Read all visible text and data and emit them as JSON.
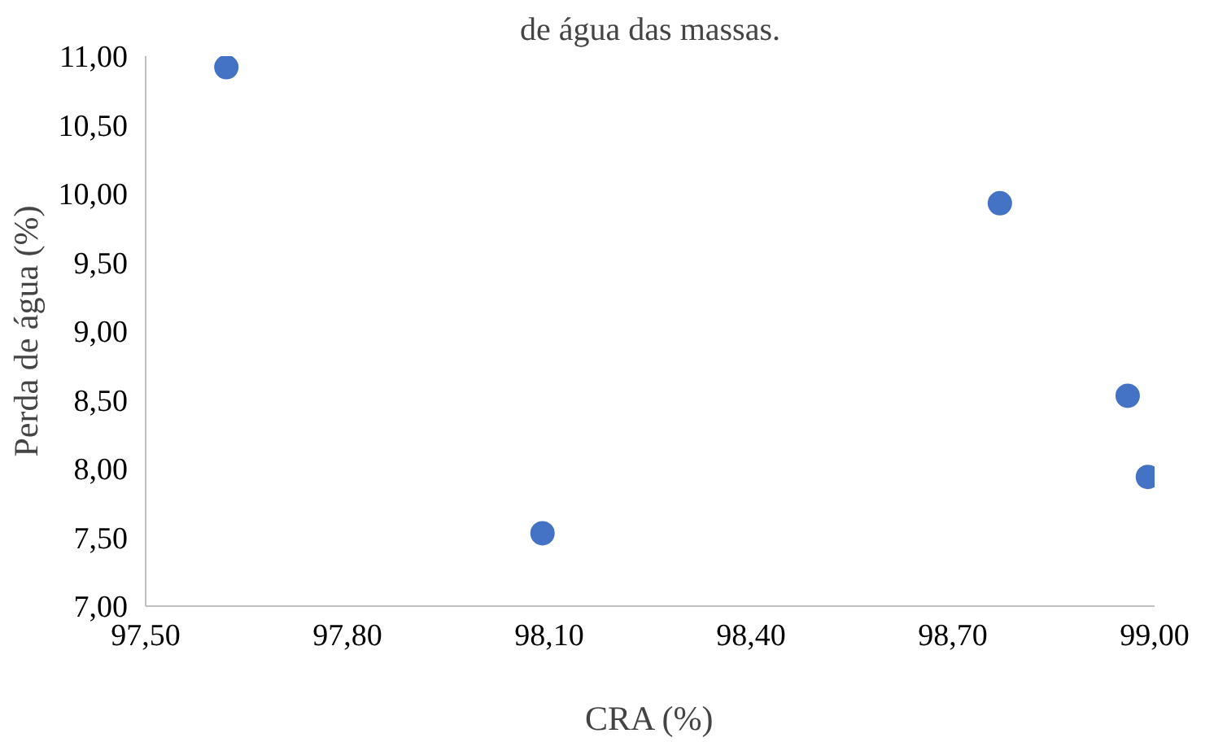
{
  "chart_data": {
    "type": "scatter",
    "title": "de água das massas.",
    "xlabel": "CRA (%)",
    "ylabel": "Perda de água (%)",
    "x": [
      97.62,
      98.09,
      98.77,
      98.96,
      98.99
    ],
    "series": [
      {
        "color": "#4472c4",
        "values": [
          10.92,
          7.53,
          9.93,
          8.53,
          7.94
        ]
      }
    ],
    "xlim": [
      97.5,
      99.0
    ],
    "ylim": [
      7.0,
      11.0
    ],
    "xticks": [
      {
        "value": 97.5,
        "label": "97,50"
      },
      {
        "value": 97.8,
        "label": "97,80"
      },
      {
        "value": 98.1,
        "label": "98,10"
      },
      {
        "value": 98.4,
        "label": "98,40"
      },
      {
        "value": 98.7,
        "label": "98,70"
      },
      {
        "value": 99.0,
        "label": "99,00"
      }
    ],
    "yticks": [
      {
        "value": 7.0,
        "label": "7,00"
      },
      {
        "value": 7.5,
        "label": "7,50"
      },
      {
        "value": 8.0,
        "label": "8,00"
      },
      {
        "value": 8.5,
        "label": "8,50"
      },
      {
        "value": 9.0,
        "label": "9,00"
      },
      {
        "value": 9.5,
        "label": "9,50"
      },
      {
        "value": 10.0,
        "label": "10,00"
      },
      {
        "value": 10.5,
        "label": "10,50"
      },
      {
        "value": 11.0,
        "label": "11,00"
      }
    ],
    "grid": false,
    "marker": "circle"
  }
}
